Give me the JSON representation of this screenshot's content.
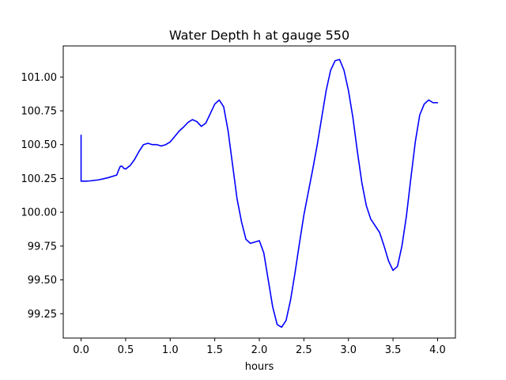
{
  "chart_data": {
    "type": "line",
    "title": "Water Depth h at gauge 550",
    "xlabel": "hours",
    "ylabel": "",
    "xlim": [
      -0.2,
      4.2
    ],
    "ylim": [
      99.07,
      101.23
    ],
    "xticks": [
      0.0,
      0.5,
      1.0,
      1.5,
      2.0,
      2.5,
      3.0,
      3.5,
      4.0
    ],
    "xtick_labels": [
      "0.0",
      "0.5",
      "1.0",
      "1.5",
      "2.0",
      "2.5",
      "3.0",
      "3.5",
      "4.0"
    ],
    "yticks": [
      99.25,
      99.5,
      99.75,
      100.0,
      100.25,
      100.5,
      100.75,
      101.0
    ],
    "ytick_labels": [
      "99.25",
      "99.50",
      "99.75",
      "100.00",
      "100.25",
      "100.50",
      "100.75",
      "101.00"
    ],
    "grid": false,
    "series": [
      {
        "color": "#0000ff",
        "x": [
          0.0,
          0.0,
          0.05,
          0.1,
          0.2,
          0.3,
          0.4,
          0.42,
          0.44,
          0.46,
          0.48,
          0.5,
          0.55,
          0.6,
          0.65,
          0.7,
          0.75,
          0.8,
          0.85,
          0.9,
          0.95,
          1.0,
          1.05,
          1.1,
          1.15,
          1.2,
          1.25,
          1.3,
          1.35,
          1.4,
          1.45,
          1.5,
          1.55,
          1.6,
          1.65,
          1.7,
          1.75,
          1.8,
          1.85,
          1.9,
          1.95,
          2.0,
          2.05,
          2.1,
          2.15,
          2.2,
          2.25,
          2.3,
          2.35,
          2.4,
          2.45,
          2.5,
          2.55,
          2.6,
          2.65,
          2.7,
          2.75,
          2.8,
          2.85,
          2.9,
          2.95,
          3.0,
          3.05,
          3.1,
          3.15,
          3.2,
          3.25,
          3.3,
          3.35,
          3.4,
          3.45,
          3.5,
          3.55,
          3.6,
          3.65,
          3.7,
          3.75,
          3.8,
          3.85,
          3.9,
          3.95,
          4.0
        ],
        "y": [
          100.57,
          100.23,
          100.23,
          100.232,
          100.24,
          100.255,
          100.275,
          100.31,
          100.34,
          100.34,
          100.325,
          100.32,
          100.345,
          100.39,
          100.45,
          100.5,
          100.51,
          100.5,
          100.5,
          100.49,
          100.5,
          100.52,
          100.56,
          100.6,
          100.63,
          100.665,
          100.685,
          100.67,
          100.635,
          100.66,
          100.73,
          100.8,
          100.83,
          100.78,
          100.6,
          100.35,
          100.1,
          99.93,
          99.8,
          99.77,
          99.78,
          99.79,
          99.7,
          99.5,
          99.3,
          99.17,
          99.15,
          99.2,
          99.35,
          99.55,
          99.77,
          99.98,
          100.15,
          100.32,
          100.5,
          100.7,
          100.9,
          101.05,
          101.12,
          101.13,
          101.05,
          100.9,
          100.7,
          100.45,
          100.22,
          100.05,
          99.95,
          99.9,
          99.85,
          99.75,
          99.64,
          99.57,
          99.6,
          99.75,
          99.97,
          100.25,
          100.52,
          100.72,
          100.8,
          100.83,
          100.81,
          100.81
        ]
      }
    ]
  }
}
